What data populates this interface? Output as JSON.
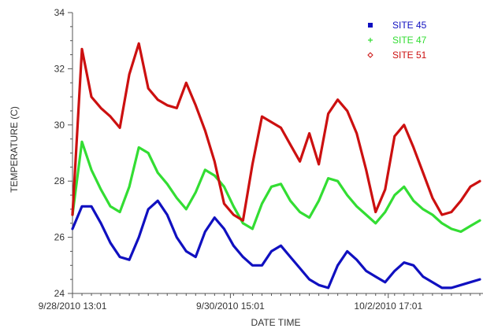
{
  "chart_data": {
    "type": "line",
    "title": "",
    "xlabel": "DATE TIME",
    "ylabel": "TEMPERATURE (C)",
    "ylim": [
      24,
      34
    ],
    "yticks": [
      24,
      26,
      28,
      30,
      32,
      34
    ],
    "xlim": [
      "9/28/2010 13:01",
      "10/3/2010 23:01"
    ],
    "xtick_labels": [
      "9/28/2010 13:01",
      "9/30/2010 15:01",
      "10/2/2010 17:01"
    ],
    "grid": false,
    "legend_position": "top-right",
    "x": [
      "9/28/2010 13:01",
      "9/28/2010 16:01",
      "9/28/2010 19:01",
      "9/28/2010 22:01",
      "9/29/2010 01:01",
      "9/29/2010 04:01",
      "9/29/2010 07:01",
      "9/29/2010 10:01",
      "9/29/2010 13:01",
      "9/29/2010 16:01",
      "9/29/2010 19:01",
      "9/29/2010 22:01",
      "9/30/2010 01:01",
      "9/30/2010 04:01",
      "9/30/2010 07:01",
      "9/30/2010 10:01",
      "9/30/2010 13:01",
      "9/30/2010 16:01",
      "9/30/2010 19:01",
      "9/30/2010 22:01",
      "10/1/2010 01:01",
      "10/1/2010 04:01",
      "10/1/2010 07:01",
      "10/1/2010 10:01",
      "10/1/2010 13:01",
      "10/1/2010 16:01",
      "10/1/2010 19:01",
      "10/1/2010 22:01",
      "10/2/2010 01:01",
      "10/2/2010 04:01",
      "10/2/2010 07:01",
      "10/2/2010 10:01",
      "10/2/2010 13:01",
      "10/2/2010 16:01",
      "10/2/2010 19:01",
      "10/2/2010 22:01",
      "10/3/2010 01:01",
      "10/3/2010 04:01",
      "10/3/2010 07:01",
      "10/3/2010 10:01",
      "10/3/2010 13:01",
      "10/3/2010 16:01",
      "10/3/2010 19:01",
      "10/3/2010 22:01"
    ],
    "series": [
      {
        "name": "SITE 45",
        "color": "#1010c0",
        "marker": "square",
        "values": [
          26.3,
          27.1,
          27.1,
          26.5,
          25.8,
          25.3,
          25.2,
          26.0,
          27.0,
          27.3,
          26.8,
          26.0,
          25.5,
          25.3,
          26.2,
          26.7,
          26.3,
          25.7,
          25.3,
          25.0,
          25.0,
          25.5,
          25.7,
          25.3,
          24.9,
          24.5,
          24.3,
          24.2,
          25.0,
          25.5,
          25.2,
          24.8,
          24.6,
          24.4,
          24.8,
          25.1,
          25.0,
          24.6,
          24.4,
          24.2,
          24.2,
          24.3,
          24.4,
          24.5
        ]
      },
      {
        "name": "SITE 47",
        "color": "#33dd33",
        "marker": "plus",
        "values": [
          26.8,
          29.4,
          28.4,
          27.7,
          27.1,
          26.9,
          27.8,
          29.2,
          29.0,
          28.3,
          27.9,
          27.4,
          27.0,
          27.6,
          28.4,
          28.2,
          27.8,
          27.1,
          26.5,
          26.3,
          27.2,
          27.8,
          27.9,
          27.3,
          26.9,
          26.7,
          27.3,
          28.1,
          28.0,
          27.5,
          27.1,
          26.8,
          26.5,
          26.9,
          27.5,
          27.8,
          27.3,
          27.0,
          26.8,
          26.5,
          26.3,
          26.2,
          26.4,
          26.6
        ]
      },
      {
        "name": "SITE 51",
        "color": "#cc1010",
        "marker": "diamond",
        "values": [
          26.8,
          32.7,
          31.0,
          30.6,
          30.3,
          29.9,
          31.8,
          32.9,
          31.3,
          30.9,
          30.7,
          30.6,
          31.5,
          30.7,
          29.8,
          28.7,
          27.2,
          26.8,
          26.6,
          28.6,
          30.3,
          30.1,
          29.9,
          29.3,
          28.7,
          29.7,
          28.6,
          30.4,
          30.9,
          30.5,
          29.7,
          28.4,
          26.9,
          27.7,
          29.6,
          30.0,
          29.2,
          28.3,
          27.4,
          26.8,
          26.9,
          27.3,
          27.8,
          28.0
        ]
      }
    ]
  }
}
